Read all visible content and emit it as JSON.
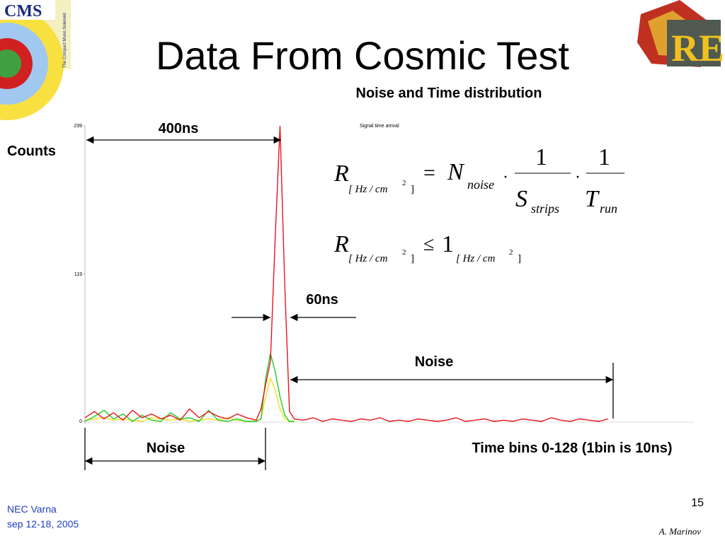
{
  "title": "Data From Cosmic Test",
  "subtitle": "Noise and Time distribution",
  "logos": {
    "cms": "CMS",
    "cms_caption": "The Compact Muon Solenoid",
    "re": "RE"
  },
  "chart_data": {
    "type": "line",
    "title": "Signal time arrival",
    "y_label": "Counts",
    "x_label": "Time bins 0-128 (1bin is 10ns)",
    "xlim": [
      0,
      128
    ],
    "ylim": [
      0,
      239
    ],
    "yticks": [
      0,
      119,
      239
    ],
    "x": [
      0,
      2,
      4,
      6,
      8,
      10,
      12,
      14,
      16,
      18,
      20,
      22,
      24,
      26,
      28,
      30,
      32,
      34,
      36,
      37,
      38,
      39,
      40,
      41,
      42,
      43,
      44,
      46,
      48,
      50,
      52,
      54,
      56,
      58,
      60,
      62,
      64,
      66,
      68,
      70,
      72,
      74,
      76,
      78,
      80,
      82,
      84,
      86,
      88,
      90,
      92,
      94,
      96,
      98,
      100,
      102,
      104,
      106,
      108,
      110
    ],
    "series": [
      {
        "name": "red",
        "color": "#e8141c",
        "values": [
          3,
          8,
          2,
          7,
          1,
          9,
          3,
          6,
          2,
          5,
          1,
          10,
          3,
          8,
          4,
          2,
          6,
          3,
          1,
          10,
          30,
          49,
          150,
          239,
          110,
          8,
          2,
          1,
          3,
          0,
          2,
          1,
          0,
          2,
          1,
          3,
          0,
          1,
          0,
          2,
          1,
          0,
          1,
          3,
          0,
          1,
          2,
          0,
          1,
          0,
          2,
          1,
          0,
          3,
          1,
          0,
          2,
          1,
          0,
          2
        ]
      },
      {
        "name": "green",
        "color": "#22cc22",
        "values": [
          0,
          4,
          9,
          2,
          6,
          0,
          5,
          1,
          0,
          7,
          2,
          3,
          0,
          9,
          1,
          0,
          2,
          0,
          0,
          2,
          35,
          55,
          40,
          20,
          5,
          0,
          0,
          null,
          null,
          null,
          null,
          null,
          null,
          null,
          null,
          null,
          null,
          null,
          null,
          null,
          null,
          null,
          null,
          null,
          null,
          null,
          null,
          null,
          null,
          null,
          null,
          null,
          null,
          null,
          null,
          null,
          null,
          null,
          null,
          null
        ]
      },
      {
        "name": "yellow",
        "color": "#f0e020",
        "values": [
          1,
          2,
          3,
          1,
          2,
          1,
          0,
          3,
          2,
          1,
          2,
          0,
          1,
          2,
          1,
          3,
          1,
          0,
          0,
          2,
          20,
          35,
          25,
          10,
          2,
          0,
          0,
          null,
          null,
          null,
          null,
          null,
          null,
          null,
          null,
          null,
          null,
          null,
          null,
          null,
          null,
          null,
          null,
          null,
          null,
          null,
          null,
          null,
          null,
          null,
          null,
          null,
          null,
          null,
          null,
          null,
          null,
          null,
          null,
          null
        ]
      }
    ]
  },
  "annotations": {
    "width_400": "400ns",
    "width_60": "60ns",
    "noise_right": "Noise",
    "noise_left": "Noise"
  },
  "formula_rate": {
    "lhs": "R",
    "unit_open": "[ Hz / cm",
    "unit_exp": "2",
    "unit_close": "]",
    "eq": "=",
    "N": "N",
    "noise": "noise",
    "dot": "·",
    "one": "1",
    "S": "S",
    "strips": "strips",
    "T": "T",
    "run": "run"
  },
  "formula_limit": {
    "lhs": "R",
    "unit_open": "[ Hz / cm",
    "unit_exp": "2",
    "unit_close": "]",
    "le": "≤",
    "one": "1"
  },
  "footer": {
    "page": "15",
    "event": "NEC Varna",
    "dates": "sep 12-18, 2005",
    "author": "A. Marinov"
  }
}
